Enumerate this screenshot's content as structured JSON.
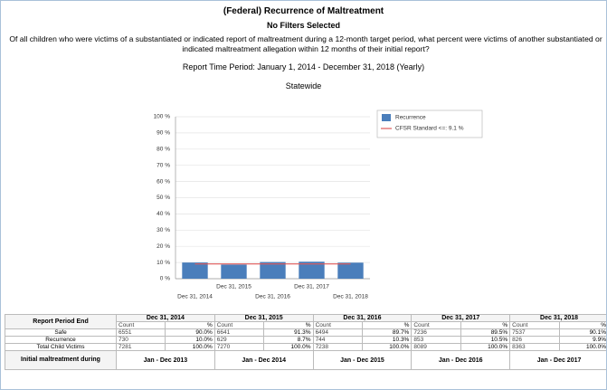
{
  "header": {
    "title": "(Federal) Recurrence of Maltreatment",
    "filters": "No Filters Selected",
    "question": "Of all children who were victims of a substantiated or indicated report of maltreatment during a 12-month target period, what percent were victims of another substantiated or indicated maltreatment allegation within 12 months of their initial report?",
    "period": "Report Time Period: January 1, 2014 - December 31, 2018 (Yearly)",
    "scope": "Statewide"
  },
  "chart_data": {
    "type": "bar",
    "categories": [
      "Dec 31, 2014",
      "Dec 31, 2015",
      "Dec 31, 2016",
      "Dec 31, 2017",
      "Dec 31, 2018"
    ],
    "series": [
      {
        "name": "Recurrence",
        "color": "#4a7ebb",
        "type": "bar",
        "values": [
          10.0,
          8.7,
          10.3,
          10.5,
          9.9
        ]
      },
      {
        "name": "CFSR Standard <=: 9.1 %",
        "color": "#e05a5a",
        "type": "line",
        "values": [
          9.1,
          9.1,
          9.1,
          9.1,
          9.1
        ]
      }
    ],
    "ylim": [
      0,
      100
    ],
    "yticks": [
      {
        "value": 0,
        "label": "0 %"
      },
      {
        "value": 10,
        "label": "10 %"
      },
      {
        "value": 20,
        "label": "20 %"
      },
      {
        "value": 30,
        "label": "30 %"
      },
      {
        "value": 40,
        "label": "40 %"
      },
      {
        "value": 50,
        "label": "50 %"
      },
      {
        "value": 60,
        "label": "60 %"
      },
      {
        "value": 70,
        "label": "70 %"
      },
      {
        "value": 80,
        "label": "80 %"
      },
      {
        "value": 90,
        "label": "90 %"
      },
      {
        "value": 100,
        "label": "100 %"
      }
    ],
    "grid": true,
    "legend": "upper right"
  },
  "table": {
    "corner": "Report Period End",
    "columns": [
      "Dec 31, 2014",
      "Dec 31, 2015",
      "Dec 31, 2016",
      "Dec 31, 2017",
      "Dec 31, 2018"
    ],
    "subheaders": [
      "Count",
      "%"
    ],
    "rows": [
      {
        "label": "Safe",
        "cells": [
          "6551",
          "90.0%",
          "6641",
          "91.3%",
          "6494",
          "89.7%",
          "7236",
          "89.5%",
          "7537",
          "90.1%"
        ]
      },
      {
        "label": "Recurrence",
        "cells": [
          "730",
          "10.0%",
          "629",
          "8.7%",
          "744",
          "10.3%",
          "853",
          "10.5%",
          "826",
          "9.9%"
        ]
      },
      {
        "label": "Total Child Victims",
        "cells": [
          "7281",
          "100.0%",
          "7270",
          "100.0%",
          "7238",
          "100.0%",
          "8089",
          "100.0%",
          "8363",
          "100.0%"
        ]
      }
    ],
    "initial": {
      "label": "Initial maltreatment during",
      "cells": [
        "Jan - Dec 2013",
        "Jan - Dec 2014",
        "Jan - Dec 2015",
        "Jan - Dec 2016",
        "Jan - Dec 2017"
      ]
    }
  }
}
